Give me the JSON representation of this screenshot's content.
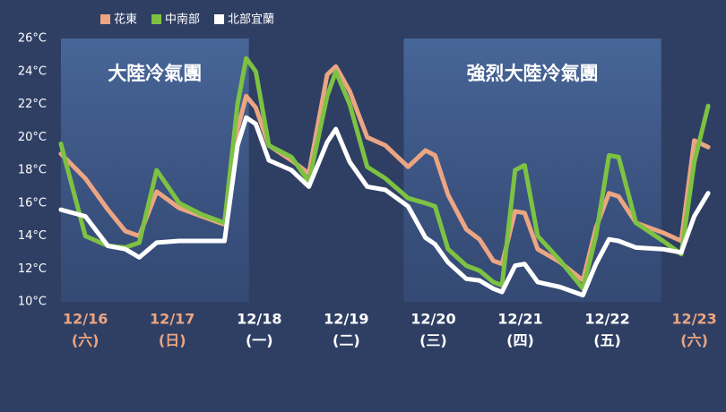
{
  "chart_data": {
    "type": "line",
    "x": [
      -0.28,
      0,
      0.26,
      0.46,
      0.62,
      0.82,
      1.08,
      1.34,
      1.6,
      1.75,
      1.85,
      1.96,
      2.11,
      2.37,
      2.57,
      2.78,
      2.88,
      3.04,
      3.24,
      3.45,
      3.71,
      3.91,
      4.02,
      4.17,
      4.38,
      4.53,
      4.69,
      4.79,
      4.94,
      5.05,
      5.2,
      5.46,
      5.72,
      5.87,
      6.02,
      6.13,
      6.33,
      6.64,
      6.85,
      7.0,
      7.16
    ],
    "series": [
      {
        "name": "花東",
        "color": "#eba582",
        "values": [
          19.0,
          17.5,
          15.6,
          14.3,
          14.0,
          16.7,
          15.7,
          15.2,
          14.7,
          20.5,
          22.5,
          21.8,
          19.5,
          18.6,
          17.8,
          23.8,
          24.3,
          22.8,
          20.0,
          19.5,
          18.2,
          19.2,
          18.9,
          16.5,
          14.4,
          13.8,
          12.5,
          12.3,
          15.5,
          15.4,
          13.2,
          12.4,
          11.3,
          14.5,
          16.6,
          16.4,
          14.8,
          14.2,
          13.7,
          19.8,
          19.4
        ]
      },
      {
        "name": "中南部",
        "color": "#7dc242",
        "values": [
          19.6,
          14.0,
          13.4,
          13.3,
          13.6,
          18.0,
          16.0,
          15.3,
          14.8,
          22.0,
          24.8,
          24.0,
          19.5,
          18.8,
          17.3,
          22.5,
          24.0,
          22.0,
          18.2,
          17.5,
          16.3,
          16.0,
          15.8,
          13.2,
          12.2,
          11.9,
          11.2,
          11.0,
          18.0,
          18.3,
          14.0,
          12.5,
          10.8,
          14.0,
          18.9,
          18.8,
          14.8,
          13.7,
          12.9,
          18.5,
          21.9
        ]
      },
      {
        "name": "北部宜蘭",
        "color": "#ffffff",
        "values": [
          15.6,
          15.2,
          13.4,
          13.2,
          12.7,
          13.6,
          13.7,
          13.7,
          13.7,
          19.5,
          21.2,
          20.8,
          18.6,
          18.0,
          17.0,
          19.7,
          20.5,
          18.5,
          17.0,
          16.8,
          15.8,
          13.9,
          13.5,
          12.4,
          11.4,
          11.3,
          10.8,
          10.6,
          12.2,
          12.3,
          11.2,
          10.9,
          10.4,
          12.3,
          13.8,
          13.7,
          13.3,
          13.2,
          13.0,
          15.2,
          16.6
        ]
      }
    ],
    "xlim": [
      -0.28,
      7.21
    ],
    "ylim": [
      10,
      26
    ],
    "yticks": [
      {
        "value": 10,
        "label": "10°C"
      },
      {
        "value": 12,
        "label": "12°C"
      },
      {
        "value": 14,
        "label": "14°C"
      },
      {
        "value": 16,
        "label": "16°C"
      },
      {
        "value": 18,
        "label": "18°C"
      },
      {
        "value": 20,
        "label": "20°C"
      },
      {
        "value": 22,
        "label": "22°C"
      },
      {
        "value": 24,
        "label": "24°C"
      },
      {
        "value": 26,
        "label": "26°C"
      }
    ],
    "xticks": [
      {
        "value": 0,
        "label": "12/16"
      },
      {
        "value": 1,
        "label": "12/17"
      },
      {
        "value": 2,
        "label": "12/18"
      },
      {
        "value": 3,
        "label": "12/19"
      },
      {
        "value": 4,
        "label": "12/20"
      },
      {
        "value": 5,
        "label": "12/21"
      },
      {
        "value": 6,
        "label": "12/22"
      },
      {
        "value": 7,
        "label": "12/23"
      }
    ],
    "xtick_weekdays": [
      "(六)",
      "(日)",
      "(一)",
      "(二)",
      "(三)",
      "(四)",
      "(五)",
      "(六)"
    ],
    "xtick_colors": [
      "#eba582",
      "#eba582",
      "#ffffff",
      "#ffffff",
      "#ffffff",
      "#ffffff",
      "#ffffff",
      "#eba582"
    ],
    "shaded_regions": [
      {
        "label": "大陸冷氣團",
        "start": -0.28,
        "end": 1.88
      },
      {
        "label": "強烈大陸冷氣團",
        "start": 3.66,
        "end": 6.62
      }
    ],
    "grid": false
  }
}
